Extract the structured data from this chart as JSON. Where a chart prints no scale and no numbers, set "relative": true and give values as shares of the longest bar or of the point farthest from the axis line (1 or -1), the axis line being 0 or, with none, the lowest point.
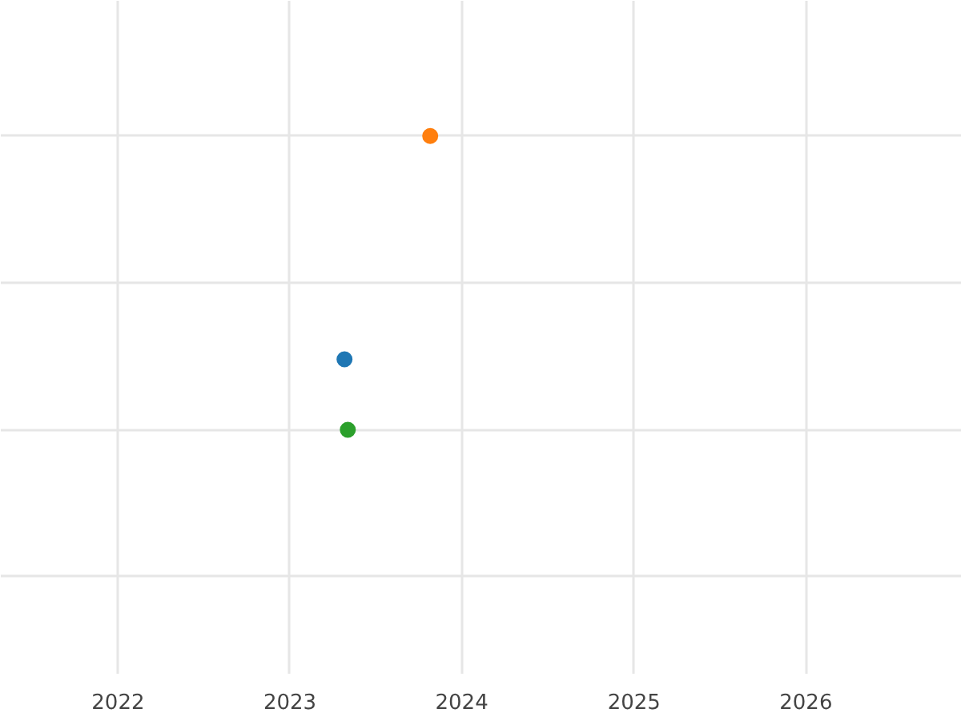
{
  "chart_data": {
    "type": "scatter",
    "relative": true,
    "x": [
      "2023-04-27",
      "2023-10-26",
      "2023-05-04"
    ],
    "values": [
      0.24,
      1,
      0
    ],
    "colors": [
      "#1f77b4",
      "#ff7f0e",
      "#2ca02c"
    ],
    "xlim": [
      "2021-04-27",
      "2026-11-28"
    ],
    "xticks": [
      "2022",
      "2023",
      "2024",
      "2025",
      "2026"
    ],
    "marker": "circle",
    "grid": true
  }
}
